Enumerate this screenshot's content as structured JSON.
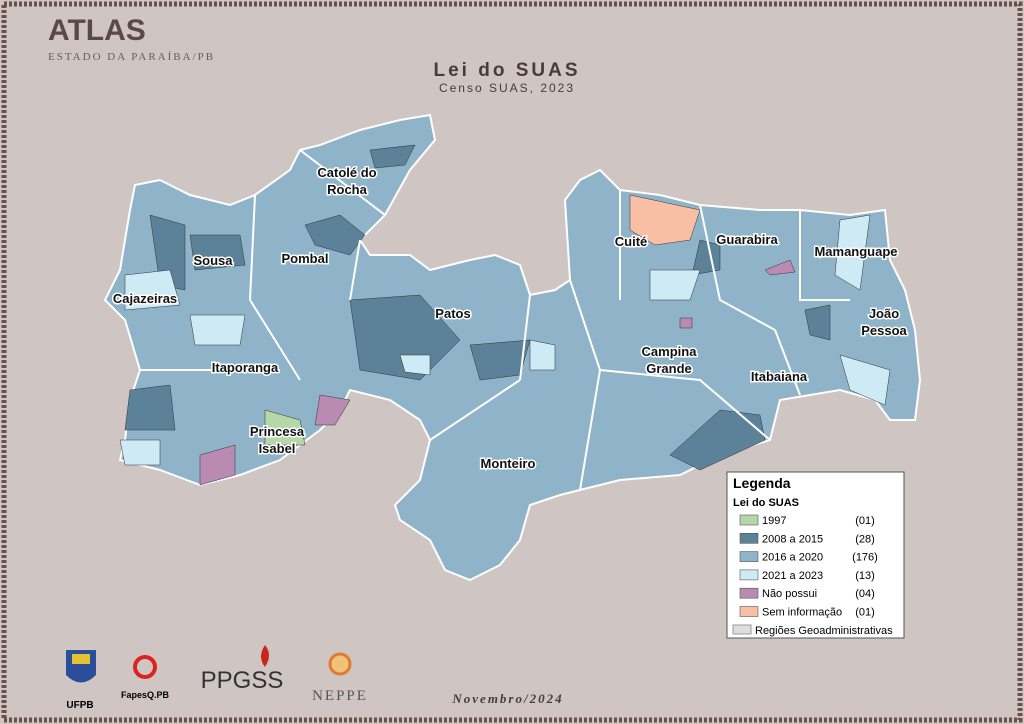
{
  "header": {
    "brand": "ATLAS",
    "state": "ESTADO DA PARAÍBA/PB"
  },
  "map": {
    "title": "Lei do SUAS",
    "subtitle": "Censo SUAS, 2023",
    "regions": [
      {
        "lines": [
          "Catolé do",
          "Rocha"
        ]
      },
      {
        "lines": [
          "Sousa"
        ]
      },
      {
        "lines": [
          "Pombal"
        ]
      },
      {
        "lines": [
          "Cajazeiras"
        ]
      },
      {
        "lines": [
          "Patos"
        ]
      },
      {
        "lines": [
          "Itaporanga"
        ]
      },
      {
        "lines": [
          "Princesa",
          "Isabel"
        ]
      },
      {
        "lines": [
          "Monteiro"
        ]
      },
      {
        "lines": [
          "Cuité"
        ]
      },
      {
        "lines": [
          "Guarabira"
        ]
      },
      {
        "lines": [
          "Mamanguape"
        ]
      },
      {
        "lines": [
          "João",
          "Pessoa"
        ]
      },
      {
        "lines": [
          "Campina",
          "Grande"
        ]
      },
      {
        "lines": [
          "Itabaiana"
        ]
      }
    ]
  },
  "legend": {
    "title": "Legenda",
    "subtitle": "Lei do SUAS",
    "items": [
      {
        "label": "1997",
        "count": "(01)",
        "color": "#b6d8a8"
      },
      {
        "label": "2008 a 2015",
        "count": "(28)",
        "color": "#5b8299"
      },
      {
        "label": "2016 a 2020",
        "count": "(176)",
        "color": "#8fb4ca"
      },
      {
        "label": "2021 a 2023",
        "count": "(13)",
        "color": "#cdeaf5"
      },
      {
        "label": "Não possui",
        "count": "(04)",
        "color": "#b98ab2"
      },
      {
        "label": "Sem informação",
        "count": "(01)",
        "color": "#f9bfa4"
      }
    ],
    "boundary": "Regiões Geoadministrativas"
  },
  "footer": {
    "date": "Novembro/2024",
    "logos": [
      "UFPB",
      "FapesQ.PB",
      "PPGSS",
      "NEPPE"
    ]
  }
}
